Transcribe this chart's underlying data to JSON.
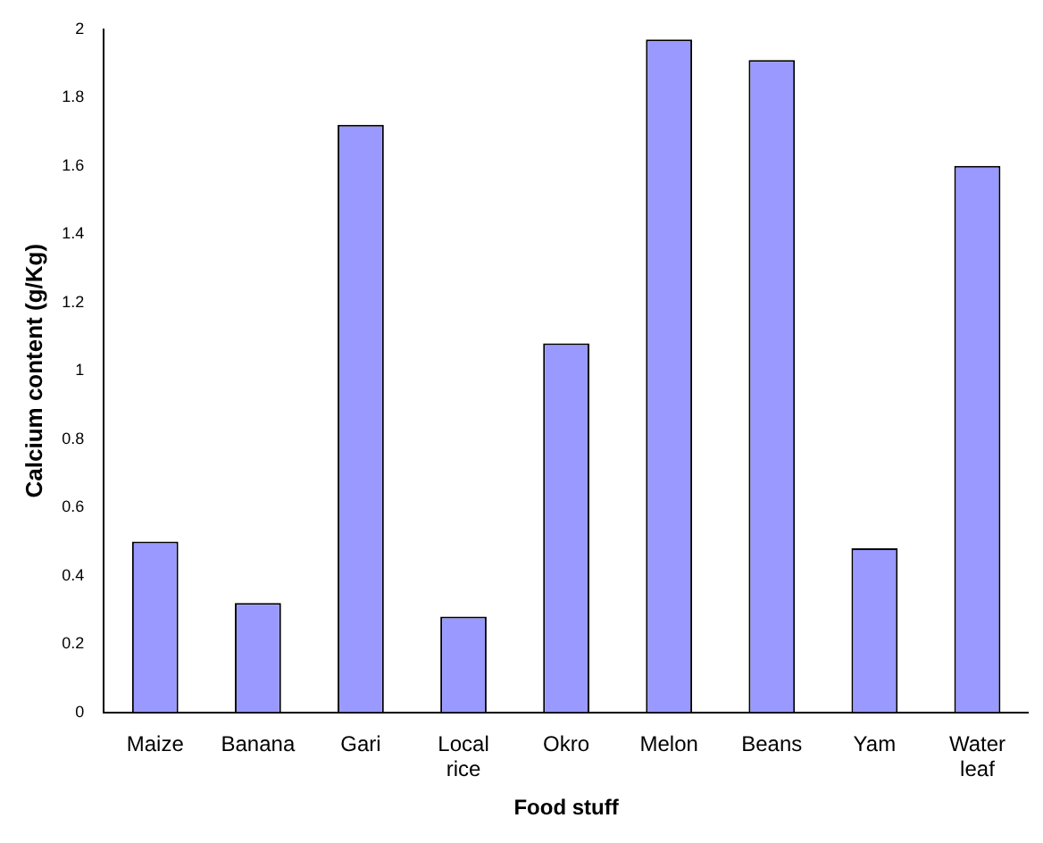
{
  "chart_data": {
    "type": "bar",
    "xlabel": "Food stuff",
    "ylabel": "Calcium content (g/Kg)",
    "categories": [
      "Maize",
      "Banana",
      "Gari",
      "Local rice",
      "Okro",
      "Melon",
      "Beans",
      "Yam",
      "Water leaf"
    ],
    "values": [
      0.5,
      0.32,
      1.72,
      0.28,
      1.08,
      1.97,
      1.91,
      0.48,
      1.6
    ],
    "color": "#9999ff",
    "ylim": [
      0,
      2
    ],
    "yticks": [
      0,
      0.2,
      0.4,
      0.6,
      0.8,
      1,
      1.2,
      1.4,
      1.6,
      1.8,
      2
    ],
    "grid": false,
    "legend": false
  }
}
